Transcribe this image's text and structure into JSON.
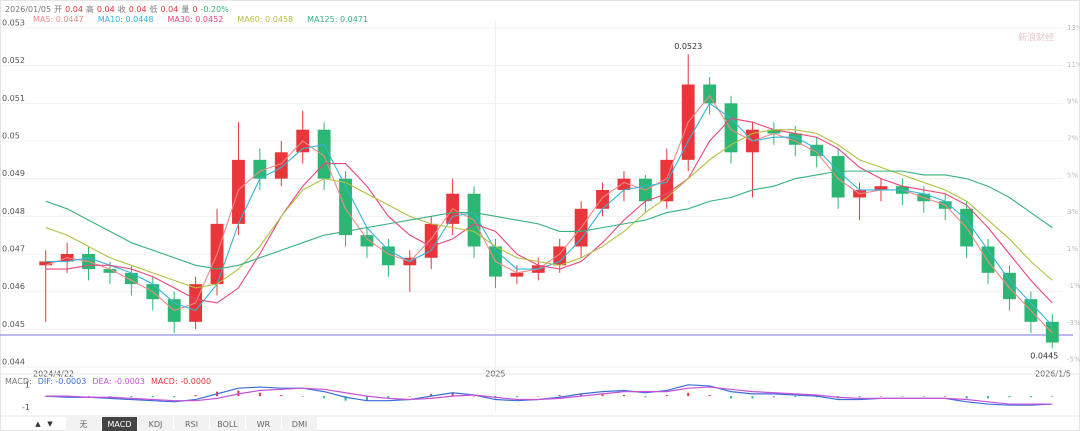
{
  "chart_data": {
    "type": "candlestick",
    "info": [
      "2026/01/05",
      "开",
      "0.04",
      "高",
      "0.04",
      "收",
      "0.04",
      "低",
      "0.04",
      "量",
      "0",
      "-0.20%"
    ],
    "watermark": "新浪财经",
    "categories": [
      "2024/4/22",
      null,
      null,
      null,
      null,
      null,
      null,
      null,
      null,
      null,
      null,
      null,
      null,
      null,
      null,
      null,
      null,
      null,
      null,
      null,
      null,
      "2025",
      null,
      null,
      null,
      null,
      null,
      null,
      null,
      null,
      null,
      null,
      null,
      null,
      null,
      null,
      null,
      null,
      null,
      null,
      null,
      null,
      null,
      null,
      null,
      null,
      null,
      "2026/1/5"
    ],
    "open": [
      0.0467,
      0.0468,
      0.047,
      0.0466,
      0.0465,
      0.0462,
      0.0458,
      0.0452,
      0.0462,
      0.0478,
      0.0495,
      0.049,
      0.0497,
      0.0503,
      0.049,
      0.0475,
      0.0472,
      0.0467,
      0.0469,
      0.0478,
      0.0486,
      0.0472,
      0.0464,
      0.0465,
      0.0467,
      0.0472,
      0.0482,
      0.0487,
      0.049,
      0.0484,
      0.0495,
      0.0515,
      0.051,
      0.0497,
      0.0503,
      0.0502,
      0.0499,
      0.0496,
      0.0485,
      0.0487,
      0.0488,
      0.0486,
      0.0484,
      0.0482,
      0.0472,
      0.0465,
      0.0458,
      0.0452
    ],
    "high": [
      0.0471,
      0.0473,
      0.0472,
      0.0468,
      0.0467,
      0.0464,
      0.046,
      0.0464,
      0.0482,
      0.0505,
      0.0498,
      0.05,
      0.0508,
      0.0505,
      0.0492,
      0.0477,
      0.0474,
      0.0471,
      0.048,
      0.049,
      0.0488,
      0.0474,
      0.0467,
      0.0469,
      0.0474,
      0.0484,
      0.0489,
      0.0492,
      0.0491,
      0.0498,
      0.0523,
      0.0517,
      0.0512,
      0.0505,
      0.0505,
      0.0504,
      0.0501,
      0.0498,
      0.0489,
      0.049,
      0.049,
      0.0488,
      0.0486,
      0.0484,
      0.0474,
      0.0467,
      0.046,
      0.0454
    ],
    "low": [
      0.0452,
      0.0465,
      0.0463,
      0.0462,
      0.0459,
      0.0455,
      0.0449,
      0.045,
      0.0459,
      0.0475,
      0.0487,
      0.0488,
      0.0494,
      0.0487,
      0.0472,
      0.0469,
      0.0464,
      0.046,
      0.0466,
      0.0475,
      0.0469,
      0.0461,
      0.0462,
      0.0463,
      0.0465,
      0.0469,
      0.048,
      0.0484,
      0.0481,
      0.0482,
      0.0492,
      0.0507,
      0.0494,
      0.0485,
      0.0499,
      0.0496,
      0.0493,
      0.0482,
      0.0479,
      0.0484,
      0.0483,
      0.0481,
      0.0479,
      0.0469,
      0.0462,
      0.0455,
      0.0449,
      0.0445
    ],
    "close": [
      0.0468,
      0.047,
      0.0466,
      0.0465,
      0.0462,
      0.0458,
      0.0452,
      0.0462,
      0.0478,
      0.0495,
      0.049,
      0.0497,
      0.0503,
      0.049,
      0.0475,
      0.0472,
      0.0467,
      0.0469,
      0.0478,
      0.0486,
      0.0472,
      0.0464,
      0.0465,
      0.0467,
      0.0472,
      0.0482,
      0.0487,
      0.049,
      0.0484,
      0.0495,
      0.0515,
      0.051,
      0.0497,
      0.0503,
      0.0502,
      0.0499,
      0.0496,
      0.0485,
      0.0487,
      0.0488,
      0.0486,
      0.0484,
      0.0482,
      0.0472,
      0.0465,
      0.0458,
      0.0452,
      0.04465
    ],
    "up_color": "#e8363b",
    "down_color": "#2bb673",
    "series": [
      {
        "name": "MA5: 0.0447",
        "color": "#f08a8a",
        "values": [
          0.0467,
          0.0469,
          0.0468,
          0.0466,
          0.0463,
          0.046,
          0.0455,
          0.0457,
          0.047,
          0.0487,
          0.0492,
          0.0494,
          0.05,
          0.0496,
          0.0482,
          0.0474,
          0.047,
          0.0468,
          0.0474,
          0.0482,
          0.0479,
          0.0468,
          0.0465,
          0.0466,
          0.047,
          0.0477,
          0.0485,
          0.0489,
          0.0487,
          0.049,
          0.0505,
          0.0512,
          0.0503,
          0.05,
          0.0502,
          0.05,
          0.0497,
          0.049,
          0.0486,
          0.0487,
          0.0487,
          0.0485,
          0.0483,
          0.0477,
          0.0468,
          0.0461,
          0.0455,
          0.0449
        ]
      },
      {
        "name": "MA10: 0.0448",
        "color": "#35b5d8",
        "values": [
          0.0468,
          0.0468,
          0.0469,
          0.0467,
          0.0465,
          0.0462,
          0.0457,
          0.0455,
          0.0462,
          0.0478,
          0.049,
          0.0493,
          0.0498,
          0.0499,
          0.0488,
          0.0477,
          0.0471,
          0.0468,
          0.0471,
          0.048,
          0.0481,
          0.0471,
          0.0466,
          0.0466,
          0.0468,
          0.0474,
          0.0482,
          0.0487,
          0.0488,
          0.0489,
          0.05,
          0.051,
          0.0506,
          0.05,
          0.0501,
          0.0501,
          0.0498,
          0.0492,
          0.0487,
          0.0487,
          0.0487,
          0.0486,
          0.0484,
          0.0479,
          0.0471,
          0.0463,
          0.0457,
          0.0451
        ]
      },
      {
        "name": "MA30: 0.0452",
        "color": "#e8477a",
        "values": [
          0.0466,
          0.0466,
          0.0467,
          0.0467,
          0.0466,
          0.0464,
          0.0461,
          0.0458,
          0.0457,
          0.0461,
          0.047,
          0.048,
          0.0488,
          0.0494,
          0.0494,
          0.0488,
          0.048,
          0.0475,
          0.0472,
          0.0474,
          0.0478,
          0.0476,
          0.047,
          0.0467,
          0.0466,
          0.0468,
          0.0473,
          0.0479,
          0.0484,
          0.0486,
          0.049,
          0.05,
          0.0506,
          0.0505,
          0.0503,
          0.0502,
          0.0501,
          0.0498,
          0.0493,
          0.049,
          0.0488,
          0.0487,
          0.0486,
          0.0483,
          0.0477,
          0.047,
          0.0463,
          0.0457
        ]
      },
      {
        "name": "MA60: 0.0458",
        "color": "#b3c043",
        "values": [
          0.0477,
          0.0475,
          0.0472,
          0.0469,
          0.0467,
          0.0465,
          0.0463,
          0.0461,
          0.0462,
          0.0466,
          0.0472,
          0.048,
          0.0487,
          0.049,
          0.0489,
          0.0486,
          0.0483,
          0.048,
          0.0478,
          0.0477,
          0.0476,
          0.0472,
          0.0469,
          0.0468,
          0.0467,
          0.0469,
          0.0472,
          0.0476,
          0.0481,
          0.0485,
          0.049,
          0.0495,
          0.0499,
          0.0502,
          0.0503,
          0.0503,
          0.0502,
          0.0499,
          0.0495,
          0.0493,
          0.0491,
          0.0489,
          0.0487,
          0.0484,
          0.0479,
          0.0474,
          0.0468,
          0.0463
        ]
      },
      {
        "name": "MA125: 0.0471",
        "color": "#35b37e",
        "values": [
          0.0484,
          0.0482,
          0.0479,
          0.0476,
          0.0473,
          0.0471,
          0.0469,
          0.0467,
          0.0466,
          0.0467,
          0.0469,
          0.0471,
          0.0473,
          0.0475,
          0.0476,
          0.0477,
          0.0478,
          0.0479,
          0.048,
          0.0481,
          0.0481,
          0.048,
          0.0479,
          0.0478,
          0.0476,
          0.0476,
          0.0477,
          0.0478,
          0.0479,
          0.0481,
          0.0482,
          0.0484,
          0.0485,
          0.0487,
          0.0488,
          0.049,
          0.0491,
          0.0492,
          0.0492,
          0.0492,
          0.0492,
          0.0491,
          0.0491,
          0.049,
          0.0488,
          0.0485,
          0.0481,
          0.0477
        ]
      }
    ],
    "ref_line": 0.04485,
    "ref_color": "#7b6fe0",
    "max_label": "0.0523",
    "min_label": "0.0445",
    "ylim": [
      0.044,
      0.053
    ],
    "yticks": [
      0.053,
      0.052,
      0.051,
      {
        "value": 0.05,
        "label": "0.05"
      },
      0.049,
      0.048,
      0.047,
      0.046,
      0.045,
      0.044
    ],
    "y2lim": [
      -5.4,
      13
    ],
    "y2ticks": [
      {
        "value": 13,
        "label": "13%"
      },
      {
        "value": 11,
        "label": "11%"
      },
      {
        "value": 9,
        "label": "9%"
      },
      {
        "value": 7,
        "label": "7%"
      },
      {
        "value": 5,
        "label": "5%"
      },
      {
        "value": 3,
        "label": "3%"
      },
      {
        "value": 1,
        "label": "1%"
      },
      {
        "value": -1,
        "label": "-1%"
      },
      {
        "value": -3,
        "label": "-3%"
      },
      {
        "value": -5,
        "label": "-5%"
      }
    ],
    "grid": true,
    "macd": {
      "label": "MACD:",
      "ylim": [
        -1.4,
        1.6
      ],
      "yticks": [
        1,
        -1
      ],
      "dif": {
        "name": "DIF: -0.0003",
        "color": "#3b6fd8",
        "values": [
          0,
          -0.1,
          -0.1,
          -0.2,
          -0.3,
          -0.4,
          -0.5,
          -0.3,
          0.2,
          0.7,
          0.8,
          0.7,
          0.7,
          0.4,
          -0.1,
          -0.4,
          -0.4,
          -0.3,
          0,
          0.3,
          0.1,
          -0.3,
          -0.4,
          -0.3,
          -0.1,
          0.2,
          0.4,
          0.5,
          0.3,
          0.5,
          1.0,
          0.9,
          0.4,
          0.2,
          0.2,
          0.1,
          0,
          -0.3,
          -0.3,
          -0.2,
          -0.2,
          -0.2,
          -0.2,
          -0.5,
          -0.7,
          -0.8,
          -0.8,
          -0.7
        ]
      },
      "dea": {
        "name": "DEA: -0.0003",
        "color": "#c552d8",
        "values": [
          0,
          0,
          -0.1,
          -0.1,
          -0.2,
          -0.3,
          -0.4,
          -0.4,
          -0.2,
          0.2,
          0.5,
          0.6,
          0.7,
          0.6,
          0.3,
          0,
          -0.2,
          -0.3,
          -0.2,
          0,
          0.1,
          -0.1,
          -0.3,
          -0.3,
          -0.2,
          0,
          0.2,
          0.4,
          0.4,
          0.4,
          0.7,
          0.8,
          0.6,
          0.4,
          0.3,
          0.2,
          0.1,
          -0.1,
          -0.2,
          -0.2,
          -0.2,
          -0.2,
          -0.2,
          -0.3,
          -0.5,
          -0.7,
          -0.7,
          -0.7
        ]
      },
      "hist": {
        "name": "MACD: -0.0000",
        "color": "#e8363b",
        "down_color": "#2bb6a0",
        "values": [
          0,
          -0.1,
          0,
          -0.1,
          -0.1,
          -0.1,
          -0.1,
          0.1,
          0.4,
          0.5,
          0.3,
          0.1,
          0,
          -0.2,
          -0.4,
          -0.4,
          -0.2,
          0,
          0.2,
          0.3,
          0,
          -0.2,
          -0.1,
          0,
          0.1,
          0.2,
          0.2,
          0.1,
          -0.1,
          0.1,
          0.3,
          0.1,
          -0.2,
          -0.2,
          -0.1,
          -0.1,
          -0.1,
          -0.2,
          -0.1,
          0,
          0,
          0,
          0,
          -0.2,
          -0.2,
          -0.1,
          -0.1,
          0
        ]
      }
    },
    "nav": [
      "▲",
      "▼"
    ],
    "tabs": [
      "无",
      "MACD",
      "KDJ",
      "RSI",
      "BOLL",
      "WR",
      "DMI"
    ],
    "active_tab": "MACD"
  }
}
